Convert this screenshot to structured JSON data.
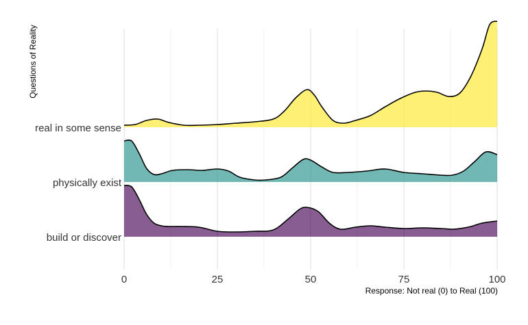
{
  "chart_data": {
    "type": "ridgeline",
    "title": "",
    "xlabel": "Response: Not real (0) to Real (100)",
    "ylabel": "Questions of Reality",
    "xlim": [
      0,
      100
    ],
    "x_ticks": [
      0,
      25,
      50,
      75,
      100
    ],
    "x_tick_labels": [
      "0",
      "25",
      "50",
      "75",
      "100"
    ],
    "grid": "vertical major and minor gridlines",
    "legend": "none",
    "categories": [
      "build or discover",
      "physically exist",
      "real in some sense"
    ],
    "series": [
      {
        "category": "build or discover",
        "color": "#440154",
        "x": [
          0,
          2,
          4,
          6,
          8,
          10,
          12,
          15,
          20,
          25,
          30,
          35,
          40,
          44,
          47,
          49,
          52,
          55,
          58,
          62,
          66,
          70,
          75,
          80,
          85,
          88,
          90,
          93,
          96,
          100
        ],
        "density": [
          0.75,
          0.73,
          0.55,
          0.33,
          0.2,
          0.16,
          0.15,
          0.15,
          0.14,
          0.08,
          0.07,
          0.08,
          0.1,
          0.26,
          0.4,
          0.43,
          0.37,
          0.2,
          0.11,
          0.14,
          0.16,
          0.14,
          0.12,
          0.13,
          0.12,
          0.11,
          0.12,
          0.15,
          0.2,
          0.23
        ]
      },
      {
        "category": "physically exist",
        "color": "#21908C",
        "x": [
          0,
          2,
          4,
          6,
          8,
          10,
          13,
          17,
          21,
          25,
          28,
          31,
          35,
          38,
          42,
          45,
          48,
          50,
          53,
          56,
          60,
          65,
          70,
          75,
          80,
          85,
          88,
          91,
          94,
          97,
          100
        ],
        "density": [
          0.6,
          0.6,
          0.42,
          0.2,
          0.11,
          0.12,
          0.17,
          0.18,
          0.17,
          0.19,
          0.16,
          0.07,
          0.03,
          0.03,
          0.07,
          0.2,
          0.33,
          0.32,
          0.22,
          0.14,
          0.14,
          0.16,
          0.19,
          0.14,
          0.12,
          0.1,
          0.1,
          0.16,
          0.3,
          0.44,
          0.4
        ]
      },
      {
        "category": "real in some sense",
        "color": "#FDE725",
        "x": [
          0,
          3,
          6,
          9,
          12,
          16,
          20,
          25,
          30,
          35,
          40,
          43,
          46,
          49,
          51,
          53,
          56,
          59,
          62,
          66,
          70,
          74,
          78,
          81,
          84,
          87,
          90,
          93,
          96,
          98,
          100
        ],
        "density": [
          0.03,
          0.04,
          0.1,
          0.12,
          0.07,
          0.03,
          0.03,
          0.04,
          0.06,
          0.08,
          0.12,
          0.24,
          0.43,
          0.55,
          0.47,
          0.3,
          0.1,
          0.06,
          0.1,
          0.17,
          0.3,
          0.42,
          0.51,
          0.53,
          0.51,
          0.45,
          0.5,
          0.75,
          1.15,
          1.5,
          1.55
        ]
      }
    ]
  }
}
